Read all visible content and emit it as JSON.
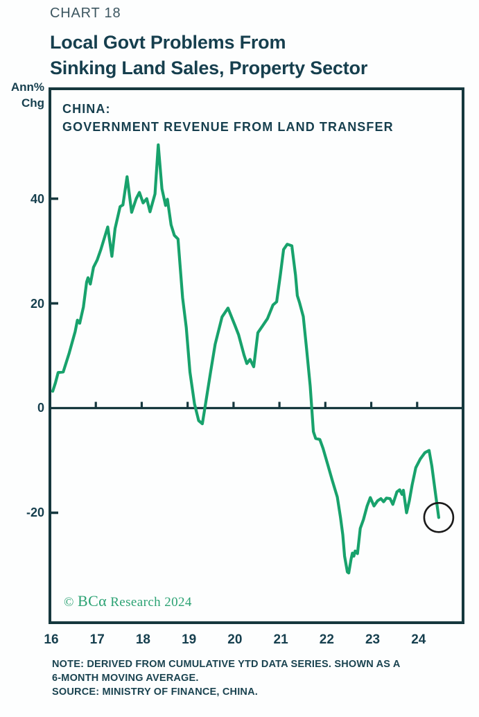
{
  "header": {
    "chart_number": "CHART 18",
    "title_line1": "Local Govt Problems From",
    "title_line2": "Sinking Land Sales, Property Sector"
  },
  "axis_unit": {
    "line1": "Ann%",
    "line2": "Chg"
  },
  "chart_data": {
    "type": "line",
    "label_line1": "CHINA:",
    "label_line2": "GOVERNMENT REVENUE FROM LAND TRANSFER",
    "xlabel": "",
    "ylabel": "Ann% Chg",
    "xlim": [
      16,
      25
    ],
    "ylim": [
      -41,
      61
    ],
    "grid": false,
    "legend_position": "none",
    "axis_color": "#16383E",
    "x_tick_marks": [
      17,
      18,
      19,
      20,
      21,
      22,
      23,
      24
    ],
    "x_labels": [
      [
        16,
        "16"
      ],
      [
        17,
        "17"
      ],
      [
        18,
        "18"
      ],
      [
        19,
        "19"
      ],
      [
        20,
        "20"
      ],
      [
        21,
        "21"
      ],
      [
        22,
        "22"
      ],
      [
        23,
        "23"
      ],
      [
        24,
        "24"
      ]
    ],
    "y_tick_marks": [
      40,
      20,
      -20
    ],
    "y_labels": [
      [
        40,
        "40"
      ],
      [
        20,
        "20"
      ],
      [
        0,
        "0"
      ],
      [
        -20,
        "-20"
      ]
    ],
    "zero_line": true,
    "annotation_circle": {
      "x": 24.47,
      "y": -20.9,
      "radius_px": 21,
      "color": "#1a1a1a"
    },
    "series": [
      {
        "name": "China: government revenue from land transfer (annual % change, 6-month moving average)",
        "color": "#18A26C",
        "points": [
          [
            16.06,
            3.2
          ],
          [
            16.12,
            4.8
          ],
          [
            16.18,
            6.8
          ],
          [
            16.29,
            6.9
          ],
          [
            16.42,
            10.5
          ],
          [
            16.55,
            14.6
          ],
          [
            16.6,
            16.8
          ],
          [
            16.65,
            16.2
          ],
          [
            16.73,
            19.3
          ],
          [
            16.8,
            24.1
          ],
          [
            16.83,
            24.9
          ],
          [
            16.88,
            23.7
          ],
          [
            16.95,
            26.9
          ],
          [
            17.03,
            28.3
          ],
          [
            17.11,
            30.3
          ],
          [
            17.18,
            32.3
          ],
          [
            17.26,
            34.6
          ],
          [
            17.35,
            29.0
          ],
          [
            17.42,
            34.3
          ],
          [
            17.53,
            38.5
          ],
          [
            17.59,
            38.8
          ],
          [
            17.68,
            44.2
          ],
          [
            17.78,
            37.4
          ],
          [
            17.88,
            40.0
          ],
          [
            17.95,
            41.2
          ],
          [
            18.03,
            39.2
          ],
          [
            18.11,
            40.0
          ],
          [
            18.18,
            37.5
          ],
          [
            18.29,
            40.9
          ],
          [
            18.36,
            50.3
          ],
          [
            18.44,
            41.9
          ],
          [
            18.52,
            38.7
          ],
          [
            18.56,
            39.9
          ],
          [
            18.64,
            35.0
          ],
          [
            18.71,
            33.0
          ],
          [
            18.79,
            32.3
          ],
          [
            18.89,
            21.1
          ],
          [
            18.97,
            15.4
          ],
          [
            19.05,
            6.9
          ],
          [
            19.15,
            0.8
          ],
          [
            19.24,
            -2.4
          ],
          [
            19.32,
            -3.0
          ],
          [
            19.39,
            0.8
          ],
          [
            19.5,
            6.9
          ],
          [
            19.6,
            12.2
          ],
          [
            19.75,
            17.4
          ],
          [
            19.88,
            19.1
          ],
          [
            20.03,
            15.8
          ],
          [
            20.11,
            14.0
          ],
          [
            20.23,
            10.1
          ],
          [
            20.29,
            8.5
          ],
          [
            20.36,
            9.3
          ],
          [
            20.44,
            7.9
          ],
          [
            20.53,
            14.4
          ],
          [
            20.64,
            15.8
          ],
          [
            20.74,
            17.1
          ],
          [
            20.86,
            19.7
          ],
          [
            20.94,
            20.3
          ],
          [
            21.02,
            25.4
          ],
          [
            21.09,
            30.3
          ],
          [
            21.17,
            31.3
          ],
          [
            21.27,
            31.0
          ],
          [
            21.35,
            25.4
          ],
          [
            21.39,
            21.5
          ],
          [
            21.44,
            20.1
          ],
          [
            21.52,
            17.5
          ],
          [
            21.59,
            11.4
          ],
          [
            21.67,
            4.2
          ],
          [
            21.74,
            -4.5
          ],
          [
            21.79,
            -5.8
          ],
          [
            21.88,
            -6.0
          ],
          [
            21.95,
            -7.7
          ],
          [
            22.05,
            -10.7
          ],
          [
            22.15,
            -13.8
          ],
          [
            22.26,
            -17.0
          ],
          [
            22.33,
            -20.9
          ],
          [
            22.38,
            -24.2
          ],
          [
            22.42,
            -28.3
          ],
          [
            22.48,
            -31.3
          ],
          [
            22.51,
            -31.5
          ],
          [
            22.56,
            -28.9
          ],
          [
            22.59,
            -27.7
          ],
          [
            22.62,
            -28.3
          ],
          [
            22.65,
            -27.3
          ],
          [
            22.7,
            -27.8
          ],
          [
            22.76,
            -23.0
          ],
          [
            22.83,
            -21.3
          ],
          [
            22.91,
            -18.7
          ],
          [
            22.98,
            -17.1
          ],
          [
            23.06,
            -18.7
          ],
          [
            23.14,
            -17.7
          ],
          [
            23.21,
            -17.3
          ],
          [
            23.27,
            -17.9
          ],
          [
            23.33,
            -17.2
          ],
          [
            23.41,
            -17.3
          ],
          [
            23.47,
            -18.4
          ],
          [
            23.56,
            -16.0
          ],
          [
            23.62,
            -15.6
          ],
          [
            23.67,
            -16.5
          ],
          [
            23.7,
            -15.7
          ],
          [
            23.77,
            -20.0
          ],
          [
            23.83,
            -17.7
          ],
          [
            23.89,
            -14.7
          ],
          [
            23.97,
            -11.4
          ],
          [
            24.07,
            -9.7
          ],
          [
            24.17,
            -8.5
          ],
          [
            24.26,
            -8.1
          ],
          [
            24.32,
            -11.1
          ],
          [
            24.4,
            -16.4
          ],
          [
            24.47,
            -20.9
          ]
        ]
      }
    ]
  },
  "footer": {
    "copyright_symbol": "© ",
    "copyright_brand": "BCα",
    "copyright_rest": " Research 2024",
    "note_line1": "NOTE: DERIVED FROM CUMULATIVE YTD DATA SERIES. SHOWN AS A",
    "note_line2": "6-MONTH MOVING AVERAGE.",
    "source": "SOURCE: MINISTRY OF FINANCE, CHINA."
  },
  "colors": {
    "title_dark": "#163f4e",
    "chart_number_gray": "#3c5660",
    "frame_dark_teal": "#16383E",
    "line_green": "#18A26C",
    "copyright_green": "#2ba273",
    "annotation_black": "#1a1a1a"
  }
}
